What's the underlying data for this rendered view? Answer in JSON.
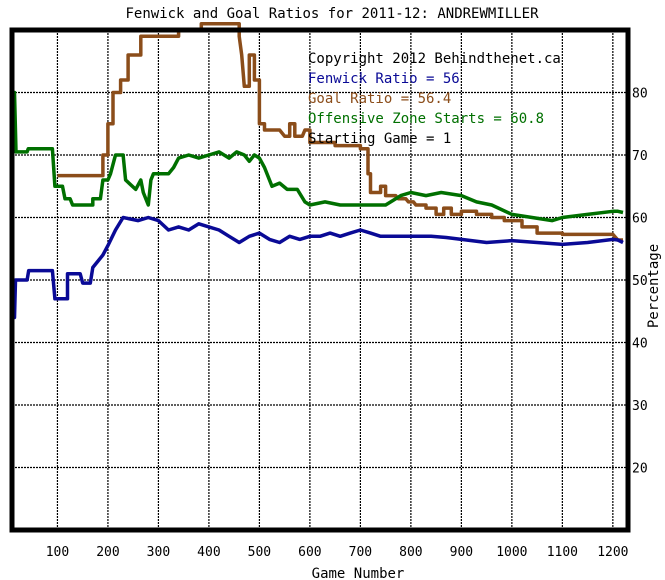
{
  "chart_data": {
    "type": "line",
    "title": "Fenwick and Goal Ratios for 2011-12: ANDREWMILLER",
    "xlabel": "Game Number",
    "ylabel": "Percentage",
    "xlim": [
      10,
      1230
    ],
    "ylim": [
      10,
      90
    ],
    "xticks": [
      100,
      200,
      300,
      400,
      500,
      600,
      700,
      800,
      900,
      1000,
      1100,
      1200
    ],
    "xtick_labels": [
      "100",
      "200",
      "300",
      "400",
      "500",
      "600",
      "700",
      "800",
      "900",
      "1000",
      "1100",
      "1200"
    ],
    "yticks": [
      20,
      30,
      40,
      50,
      60,
      70,
      80
    ],
    "ytick_labels": [
      "20",
      "30",
      "40",
      "50",
      "60",
      "70",
      "80"
    ],
    "grid": true,
    "legend_position": "top-right",
    "annotations": [
      {
        "text": "Copyright 2012 Behindthenet.ca",
        "color": "#000000"
      },
      {
        "text": "Fenwick Ratio = 56",
        "color": "#0a0a96"
      },
      {
        "text": "Goal Ratio = 56.4",
        "color": "#8b4d1a"
      },
      {
        "text": "Offensive Zone Starts = 60.8",
        "color": "#007000"
      },
      {
        "text": "Starting Game = 1",
        "color": "#000000"
      }
    ],
    "series": [
      {
        "name": "Goal Ratio",
        "color": "#8b4d1a",
        "points": [
          [
            100,
            66.7
          ],
          [
            190,
            66.7
          ],
          [
            190,
            70
          ],
          [
            200,
            70
          ],
          [
            200,
            75
          ],
          [
            210,
            75
          ],
          [
            210,
            80
          ],
          [
            225,
            80
          ],
          [
            225,
            82
          ],
          [
            240,
            82
          ],
          [
            240,
            86
          ],
          [
            265,
            86
          ],
          [
            265,
            89
          ],
          [
            340,
            89
          ],
          [
            340,
            90
          ],
          [
            385,
            90
          ],
          [
            385,
            91
          ],
          [
            450,
            91
          ],
          [
            460,
            91
          ],
          [
            460,
            89
          ],
          [
            465,
            86
          ],
          [
            470,
            81
          ],
          [
            480,
            81
          ],
          [
            480,
            86
          ],
          [
            490,
            86
          ],
          [
            490,
            82
          ],
          [
            500,
            82
          ],
          [
            500,
            75
          ],
          [
            510,
            75
          ],
          [
            510,
            74
          ],
          [
            540,
            74
          ],
          [
            550,
            73
          ],
          [
            560,
            73
          ],
          [
            560,
            75
          ],
          [
            570,
            75
          ],
          [
            570,
            73
          ],
          [
            585,
            73
          ],
          [
            590,
            74
          ],
          [
            600,
            74
          ],
          [
            600,
            72
          ],
          [
            650,
            72
          ],
          [
            650,
            71.5
          ],
          [
            700,
            71.5
          ],
          [
            700,
            71
          ],
          [
            715,
            71
          ],
          [
            715,
            67
          ],
          [
            720,
            67
          ],
          [
            720,
            64
          ],
          [
            740,
            64
          ],
          [
            740,
            65
          ],
          [
            750,
            65
          ],
          [
            750,
            63.5
          ],
          [
            770,
            63.5
          ],
          [
            775,
            63
          ],
          [
            790,
            63
          ],
          [
            795,
            62.5
          ],
          [
            805,
            62.5
          ],
          [
            810,
            62
          ],
          [
            830,
            62
          ],
          [
            830,
            61.5
          ],
          [
            850,
            61.5
          ],
          [
            850,
            60.5
          ],
          [
            865,
            60.5
          ],
          [
            865,
            61.5
          ],
          [
            880,
            61.5
          ],
          [
            880,
            60.5
          ],
          [
            900,
            60.5
          ],
          [
            900,
            61
          ],
          [
            930,
            61
          ],
          [
            930,
            60.5
          ],
          [
            960,
            60.5
          ],
          [
            960,
            60
          ],
          [
            985,
            60
          ],
          [
            985,
            59.5
          ],
          [
            1020,
            59.5
          ],
          [
            1020,
            58.5
          ],
          [
            1050,
            58.5
          ],
          [
            1050,
            57.5
          ],
          [
            1100,
            57.5
          ],
          [
            1100,
            57.3
          ],
          [
            1170,
            57.3
          ],
          [
            1200,
            57.3
          ],
          [
            1210,
            56.4
          ],
          [
            1220,
            56.4
          ]
        ]
      },
      {
        "name": "Offensive Zone Starts",
        "color": "#007000",
        "points": [
          [
            10,
            80
          ],
          [
            15,
            80
          ],
          [
            18,
            70.5
          ],
          [
            40,
            70.5
          ],
          [
            42,
            71
          ],
          [
            90,
            71
          ],
          [
            95,
            65
          ],
          [
            110,
            65
          ],
          [
            115,
            63
          ],
          [
            125,
            63
          ],
          [
            130,
            62
          ],
          [
            170,
            62
          ],
          [
            170,
            63
          ],
          [
            185,
            63
          ],
          [
            190,
            66
          ],
          [
            200,
            66
          ],
          [
            205,
            67
          ],
          [
            215,
            70
          ],
          [
            230,
            70
          ],
          [
            235,
            66
          ],
          [
            255,
            64.5
          ],
          [
            265,
            66
          ],
          [
            270,
            64
          ],
          [
            280,
            62
          ],
          [
            285,
            66
          ],
          [
            290,
            67
          ],
          [
            320,
            67
          ],
          [
            330,
            68
          ],
          [
            340,
            69.5
          ],
          [
            360,
            70
          ],
          [
            380,
            69.5
          ],
          [
            400,
            70
          ],
          [
            420,
            70.5
          ],
          [
            440,
            69.5
          ],
          [
            455,
            70.5
          ],
          [
            470,
            70
          ],
          [
            480,
            69
          ],
          [
            490,
            70
          ],
          [
            500,
            69.5
          ],
          [
            510,
            68
          ],
          [
            525,
            65
          ],
          [
            540,
            65.5
          ],
          [
            555,
            64.5
          ],
          [
            575,
            64.5
          ],
          [
            590,
            62.5
          ],
          [
            600,
            62
          ],
          [
            630,
            62.5
          ],
          [
            660,
            62
          ],
          [
            700,
            62
          ],
          [
            750,
            62
          ],
          [
            760,
            62.5
          ],
          [
            780,
            63.5
          ],
          [
            800,
            64
          ],
          [
            830,
            63.5
          ],
          [
            860,
            64
          ],
          [
            900,
            63.5
          ],
          [
            930,
            62.5
          ],
          [
            960,
            62
          ],
          [
            1000,
            60.5
          ],
          [
            1040,
            60
          ],
          [
            1080,
            59.5
          ],
          [
            1100,
            60
          ],
          [
            1150,
            60.5
          ],
          [
            1200,
            61
          ],
          [
            1210,
            61
          ],
          [
            1220,
            60.8
          ]
        ]
      },
      {
        "name": "Fenwick Ratio",
        "color": "#0a0a96",
        "points": [
          [
            10,
            44
          ],
          [
            15,
            44
          ],
          [
            17,
            50
          ],
          [
            40,
            50
          ],
          [
            43,
            51.5
          ],
          [
            90,
            51.5
          ],
          [
            95,
            47
          ],
          [
            120,
            47
          ],
          [
            120,
            51
          ],
          [
            145,
            51
          ],
          [
            150,
            49.5
          ],
          [
            165,
            49.5
          ],
          [
            170,
            52
          ],
          [
            190,
            54
          ],
          [
            200,
            55.5
          ],
          [
            215,
            58
          ],
          [
            230,
            60
          ],
          [
            260,
            59.5
          ],
          [
            280,
            60
          ],
          [
            300,
            59.5
          ],
          [
            320,
            58
          ],
          [
            340,
            58.5
          ],
          [
            360,
            58
          ],
          [
            380,
            59
          ],
          [
            400,
            58.5
          ],
          [
            420,
            58
          ],
          [
            440,
            57
          ],
          [
            460,
            56
          ],
          [
            470,
            56.5
          ],
          [
            480,
            57
          ],
          [
            500,
            57.5
          ],
          [
            520,
            56.5
          ],
          [
            540,
            56
          ],
          [
            560,
            57
          ],
          [
            580,
            56.5
          ],
          [
            600,
            57
          ],
          [
            620,
            57
          ],
          [
            640,
            57.5
          ],
          [
            660,
            57
          ],
          [
            680,
            57.5
          ],
          [
            700,
            58
          ],
          [
            720,
            57.5
          ],
          [
            740,
            57
          ],
          [
            760,
            57
          ],
          [
            800,
            57
          ],
          [
            840,
            57
          ],
          [
            870,
            56.8
          ],
          [
            900,
            56.5
          ],
          [
            950,
            56
          ],
          [
            1000,
            56.3
          ],
          [
            1050,
            56
          ],
          [
            1100,
            55.7
          ],
          [
            1150,
            56
          ],
          [
            1200,
            56.5
          ],
          [
            1210,
            56.4
          ],
          [
            1220,
            56
          ]
        ]
      }
    ]
  }
}
